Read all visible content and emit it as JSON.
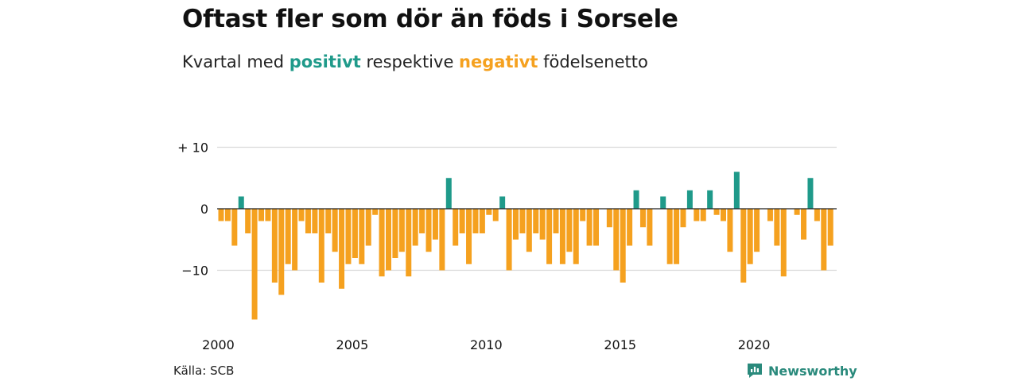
{
  "title": "Oftast fler som dör än föds i Sorsele",
  "subtitle": {
    "prefix": "Kvartal med ",
    "positive": "positivt",
    "middle": " respektive ",
    "negative": "negativt",
    "suffix": " födelsenetto"
  },
  "source": "Källa: SCB",
  "brand": "Newsworthy",
  "colors": {
    "positive": "#1f9a8a",
    "negative": "#f5a11f",
    "grid": "#d9d9d9",
    "brand": "#2a8a7c"
  },
  "chart_data": {
    "type": "bar",
    "ylim": [
      -18,
      10
    ],
    "y_ticks": [
      {
        "value": 10,
        "label": "+ 10"
      },
      {
        "value": 0,
        "label": "0"
      },
      {
        "value": -10,
        "label": "−10"
      }
    ],
    "x_ticks": [
      "2000",
      "2005",
      "2010",
      "2015",
      "2020"
    ],
    "x_start_year": 2000,
    "periods_per_year": 4,
    "values": [
      -2,
      -2,
      -6,
      2,
      -4,
      -18,
      -2,
      -2,
      -12,
      -14,
      -9,
      -10,
      -2,
      -4,
      -4,
      -12,
      -4,
      -7,
      -13,
      -9,
      -8,
      -9,
      -6,
      -1,
      -11,
      -10,
      -8,
      -7,
      -11,
      -6,
      -4,
      -7,
      -5,
      -10,
      5,
      -6,
      -4,
      -9,
      -4,
      -4,
      -1,
      -2,
      2,
      -10,
      -5,
      -4,
      -7,
      -4,
      -5,
      -9,
      -4,
      -9,
      -7,
      -9,
      -2,
      -6,
      -6,
      0,
      -3,
      -10,
      -12,
      -6,
      3,
      -3,
      -6,
      0,
      2,
      -9,
      -9,
      -3,
      3,
      -2,
      -2,
      3,
      -1,
      -2,
      -7,
      6,
      -12,
      -9,
      -7,
      0,
      -2,
      -6,
      -11,
      0,
      -1,
      -5,
      5,
      -2,
      -10,
      -6
    ]
  }
}
